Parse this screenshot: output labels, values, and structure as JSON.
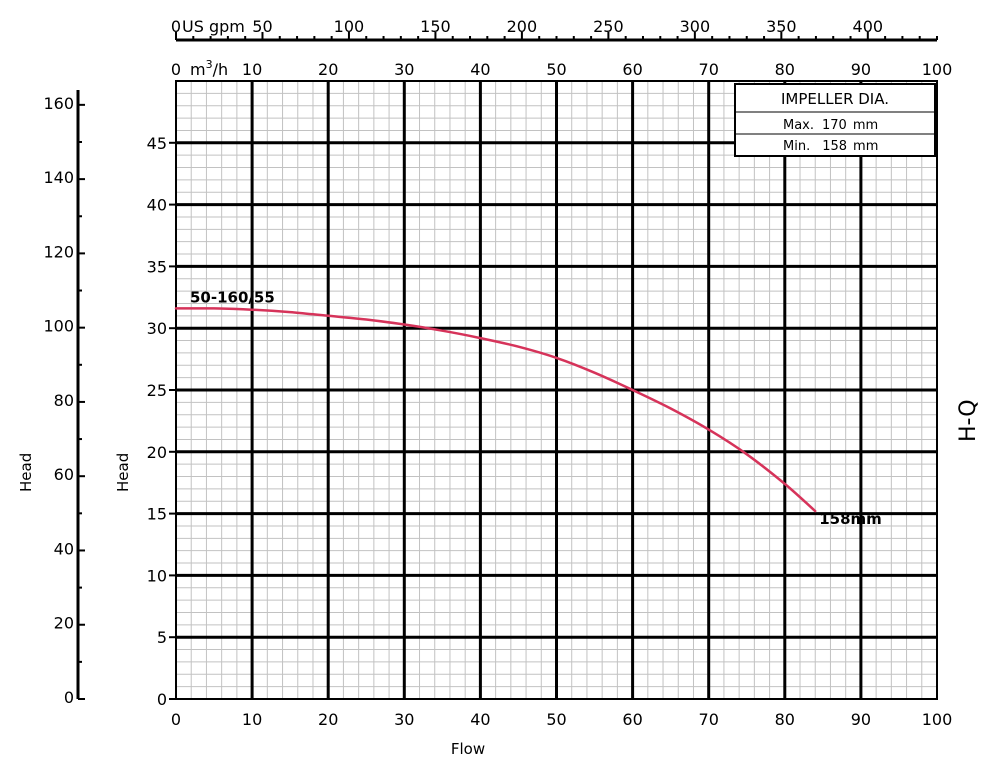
{
  "chart_data": {
    "type": "line",
    "xlabel": "Flow",
    "ylabel_left": "Head",
    "ylabel_inner": "Head",
    "side_label": "H-Q",
    "top_axis_gpm": {
      "unit": "US gpm",
      "ticks": [
        "0",
        "50",
        "100",
        "150",
        "200",
        "250",
        "300",
        "350",
        "400"
      ],
      "range": [
        0,
        440
      ]
    },
    "top_axis_m3h": {
      "unit_base": "m",
      "unit_sup": "3",
      "unit_suffix": "/h",
      "ticks": [
        "0",
        "10",
        "20",
        "30",
        "40",
        "50",
        "60",
        "70",
        "80",
        "90",
        "100"
      ],
      "range": [
        0,
        100
      ]
    },
    "xlim": [
      0,
      100
    ],
    "x_ticks": [
      "0",
      "10",
      "20",
      "30",
      "40",
      "50",
      "60",
      "70",
      "80",
      "90",
      "100"
    ],
    "ylim": [
      0,
      50
    ],
    "y_ticks": [
      "0",
      "5",
      "10",
      "15",
      "20",
      "25",
      "30",
      "35",
      "40",
      "45"
    ],
    "left_axis_ft": {
      "range": [
        0,
        164
      ],
      "ticks": [
        "0",
        "20",
        "40",
        "60",
        "80",
        "100",
        "120",
        "140",
        "160"
      ]
    },
    "grid": true,
    "legend": {
      "title": "IMPELLER DIA.",
      "rows": [
        {
          "label": "Max.",
          "value": "170",
          "unit": "mm"
        },
        {
          "label": "Min.",
          "value": "158",
          "unit": "mm"
        }
      ]
    },
    "series": [
      {
        "name": "50-160/55",
        "end_label": "158mm",
        "color": "#d6335a",
        "x": [
          0,
          5,
          10,
          15,
          20,
          25,
          30,
          35,
          40,
          45,
          50,
          55,
          60,
          65,
          70,
          75,
          80,
          84
        ],
        "y": [
          31.6,
          31.6,
          31.5,
          31.3,
          31.0,
          30.7,
          30.3,
          29.8,
          29.2,
          28.5,
          27.6,
          26.4,
          25.0,
          23.5,
          21.8,
          19.8,
          17.4,
          15.2
        ]
      }
    ]
  }
}
